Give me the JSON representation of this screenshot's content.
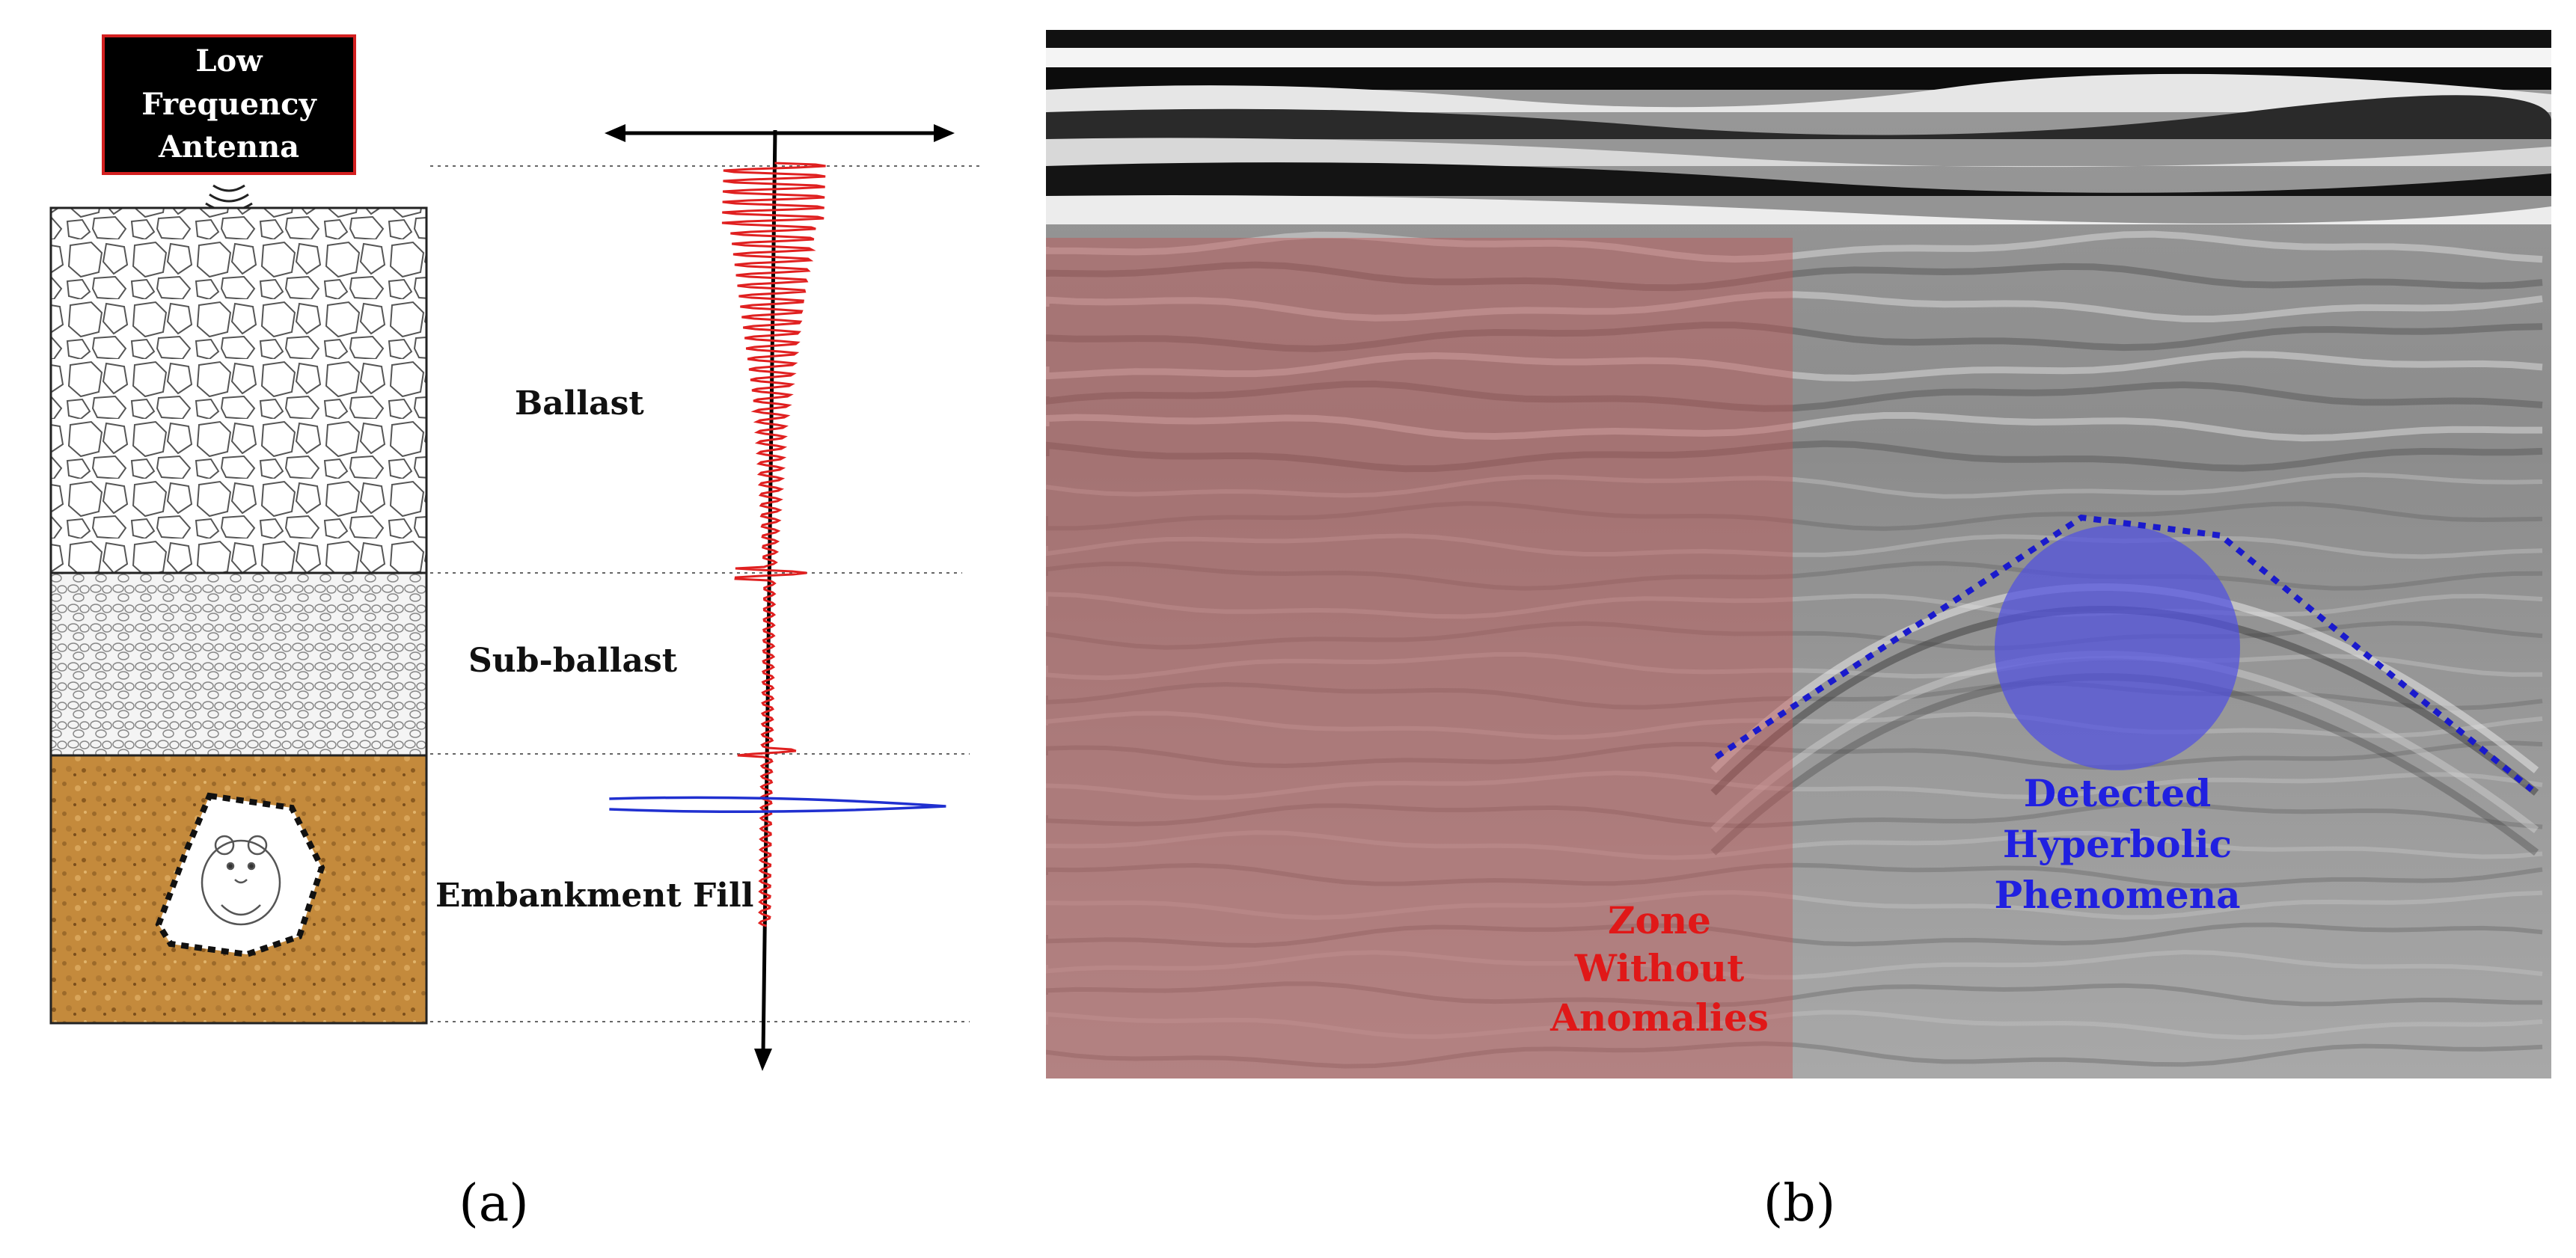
{
  "panel_a": {
    "antenna_label": [
      "Low",
      "Frequency",
      "Antenna"
    ],
    "layers": [
      {
        "key": "ballast",
        "label": "Ballast"
      },
      {
        "key": "subballast",
        "label": "Sub-ballast"
      },
      {
        "key": "embankment",
        "label": "Embankment Fill"
      }
    ],
    "caption": "(a)",
    "colors": {
      "antenna_box": "#000000",
      "antenna_border": "#d42020",
      "trace": "#e02020",
      "anomaly_trace": "#2030d0",
      "soil": "#c48a3c"
    }
  },
  "panel_b": {
    "zone_label": [
      "Zone",
      "Without",
      "Anomalies"
    ],
    "detected_label": [
      "Detected",
      "Hyperbolic",
      "Phenomena"
    ],
    "caption": "(b)",
    "colors": {
      "zone_overlay": "#c06060",
      "zone_text": "#e01818",
      "detected_text": "#2020e0",
      "hyperbola": "#1a1acc",
      "circle": "#5858e0"
    }
  }
}
